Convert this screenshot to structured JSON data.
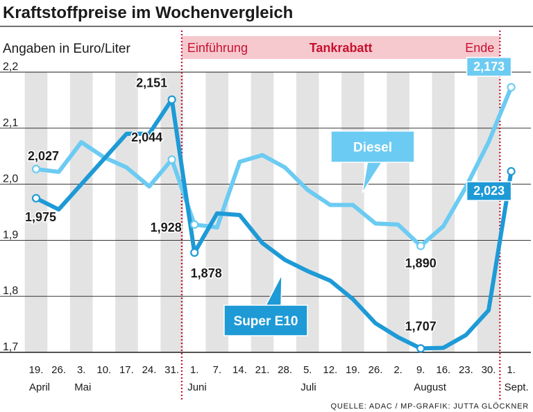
{
  "title": "Kraftstoffpreise im Wochenvergleich",
  "source": "QUELLE: ADAC / MP-GRAFIK: JUTTA GLÖCKNER",
  "colors": {
    "e10": "#1e9ad6",
    "diesel": "#6ccbf2",
    "stripe": "#e3e3e3",
    "band": "#f6c9cf",
    "event_line": "#c8102e"
  },
  "chart_data": {
    "type": "line",
    "ylabel": "Angaben in Euro/Liter",
    "ylim": [
      1.7,
      2.2
    ],
    "yticks": [
      "1,7",
      "1,8",
      "1,9",
      "2,0",
      "2,1",
      "2,2"
    ],
    "categories": [
      "19.",
      "26.",
      "3.",
      "10.",
      "17.",
      "24.",
      "31.",
      "1.",
      "7.",
      "14.",
      "21.",
      "28.",
      "5.",
      "12.",
      "19.",
      "26.",
      "2.",
      "9.",
      "16.",
      "23.",
      "30.",
      "1."
    ],
    "months": [
      {
        "label": "April",
        "index": 0
      },
      {
        "label": "Mai",
        "index": 2
      },
      {
        "label": "Juni",
        "index": 7
      },
      {
        "label": "Juli",
        "index": 12
      },
      {
        "label": "August",
        "index": 17
      },
      {
        "label": "Sept.",
        "index": 21
      }
    ],
    "band": {
      "title": "Tankrabatt",
      "start_label": "Einführung",
      "end_label": "Ende",
      "start_index": 7,
      "end_index": 21
    },
    "series": [
      {
        "name": "Super E10",
        "values": [
          1.975,
          1.955,
          2.0,
          2.045,
          2.09,
          2.09,
          2.151,
          1.878,
          1.948,
          1.945,
          1.895,
          1.865,
          1.845,
          1.828,
          1.795,
          1.752,
          1.727,
          1.707,
          1.708,
          1.731,
          1.775,
          2.023
        ]
      },
      {
        "name": "Diesel",
        "values": [
          2.027,
          2.022,
          2.075,
          2.048,
          2.03,
          1.996,
          2.044,
          1.928,
          1.923,
          2.04,
          2.052,
          2.03,
          1.99,
          1.963,
          1.963,
          1.93,
          1.928,
          1.89,
          1.925,
          1.995,
          2.075,
          2.173
        ]
      }
    ],
    "annotations": [
      {
        "series": 0,
        "index": 0,
        "text": "1,975"
      },
      {
        "series": 0,
        "index": 6,
        "text": "2,151"
      },
      {
        "series": 0,
        "index": 7,
        "text": "1,878"
      },
      {
        "series": 0,
        "index": 17,
        "text": "1,707"
      },
      {
        "series": 0,
        "index": 21,
        "text": "2,023"
      },
      {
        "series": 1,
        "index": 0,
        "text": "2,027"
      },
      {
        "series": 1,
        "index": 6,
        "text": "2,044"
      },
      {
        "series": 1,
        "index": 7,
        "text": "1,928"
      },
      {
        "series": 1,
        "index": 17,
        "text": "1,890"
      },
      {
        "series": 1,
        "index": 21,
        "text": "2,173"
      }
    ]
  }
}
